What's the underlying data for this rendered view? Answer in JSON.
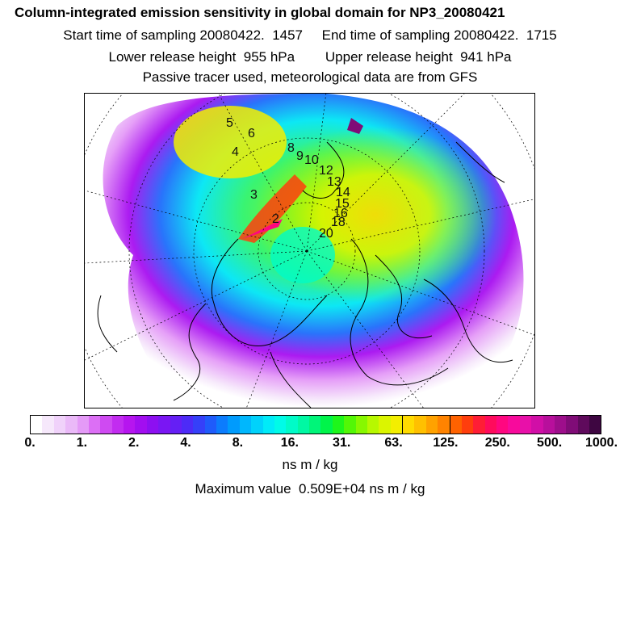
{
  "header": {
    "title": "Column-integrated emission sensitivity in global domain for NP3_20080421",
    "line2": "Start time of sampling 20080422.  1457     End time of sampling 20080422.  1715",
    "line3": "Lower release height  955 hPa        Upper release height  941 hPa",
    "line4": "Passive tracer used, meteorological data are from GFS"
  },
  "map": {
    "projection": "polar-stereographic-north",
    "trajectory_labels": [
      "2",
      "3",
      "4",
      "5",
      "6",
      "8",
      "9",
      "10",
      "12",
      "13",
      "14",
      "15",
      "16",
      "18",
      "20"
    ]
  },
  "colorbar": {
    "colors": [
      "#ffffff",
      "#f6e8fb",
      "#f0d2fa",
      "#eab9f8",
      "#e49af7",
      "#dc6ff5",
      "#cf4af2",
      "#c22cf0",
      "#b615ef",
      "#a20ef0",
      "#8d0ff1",
      "#7a16f3",
      "#651ff5",
      "#4d2bf7",
      "#3540f9",
      "#1f5bfb",
      "#0c7cfd",
      "#009bfd",
      "#00b7fd",
      "#00d2fb",
      "#00ebf8",
      "#00fbe8",
      "#00fbc8",
      "#00f8a3",
      "#00f579",
      "#00f44a",
      "#1ef61b",
      "#53f706",
      "#87f800",
      "#b7f800",
      "#dbf500",
      "#f3ee00",
      "#ffdb00",
      "#ffc000",
      "#ffa200",
      "#ff8300",
      "#ff6200",
      "#ff3e0d",
      "#ff1d35",
      "#ff0b5c",
      "#ff0780",
      "#f80a9c",
      "#e810a9",
      "#d10fa7",
      "#b80f9c",
      "#9d0e8b",
      "#800c77",
      "#5f0a5c",
      "#3e0641"
    ],
    "tick_labels": [
      "0.",
      "1.",
      "2.",
      "4.",
      "8.",
      "16.",
      "31.",
      "63.",
      "125.",
      "250.",
      "500.",
      "1000."
    ],
    "unit_label": "ns m / kg"
  },
  "max_value_text": "Maximum value  0.509E+04 ns m / kg"
}
